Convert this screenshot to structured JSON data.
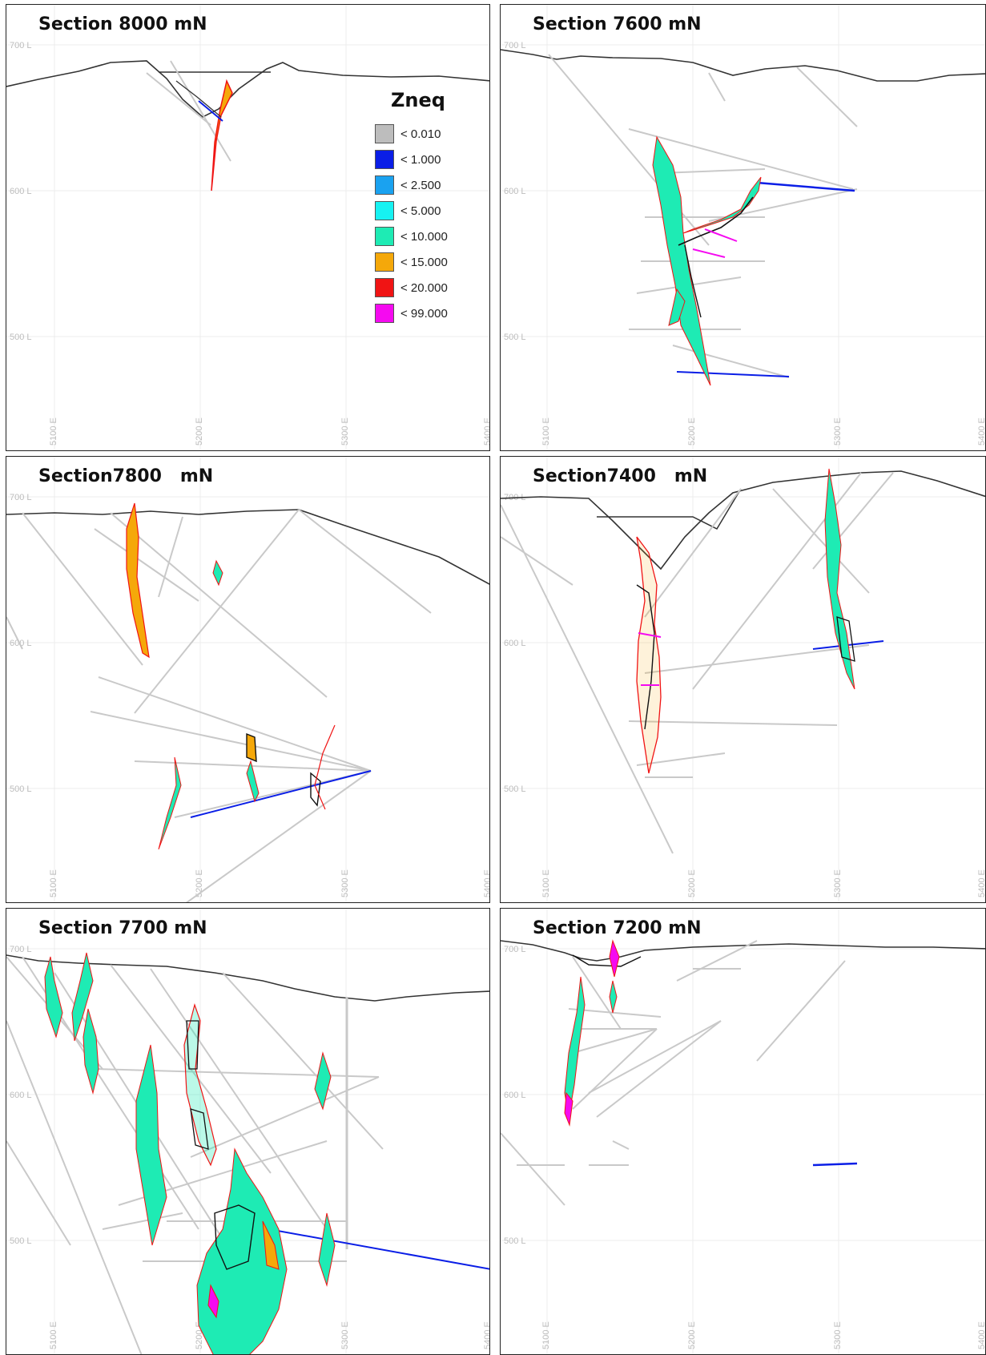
{
  "panels": [
    {
      "id": "p8000",
      "title": "Section 8000 mN"
    },
    {
      "id": "p7600",
      "title": "Section 7600 mN"
    },
    {
      "id": "p7800",
      "title": "Section7800   mN"
    },
    {
      "id": "p7400",
      "title": "Section7400   mN"
    },
    {
      "id": "p7700",
      "title": "Section 7700 mN"
    },
    {
      "id": "p7200",
      "title": "Section 7200 mN"
    }
  ],
  "levels": [
    "700 L",
    "600 L",
    "500 L"
  ],
  "eastings": [
    "5100 E",
    "5200 E",
    "5300 E",
    "5400 E"
  ],
  "legend": {
    "title": "Zneq",
    "items": [
      {
        "label": "< 0.010",
        "color": "#bdbdbd"
      },
      {
        "label": "< 1.000",
        "color": "#0a1ee6"
      },
      {
        "label": "< 2.500",
        "color": "#1aa2f0"
      },
      {
        "label": "< 5.000",
        "color": "#16f2f2"
      },
      {
        "label": "< 10.000",
        "color": "#1eebb4"
      },
      {
        "label": "< 15.000",
        "color": "#f5a80a"
      },
      {
        "label": "< 20.000",
        "color": "#f01414"
      },
      {
        "label": "< 99.000",
        "color": "#f50af0"
      }
    ]
  }
}
